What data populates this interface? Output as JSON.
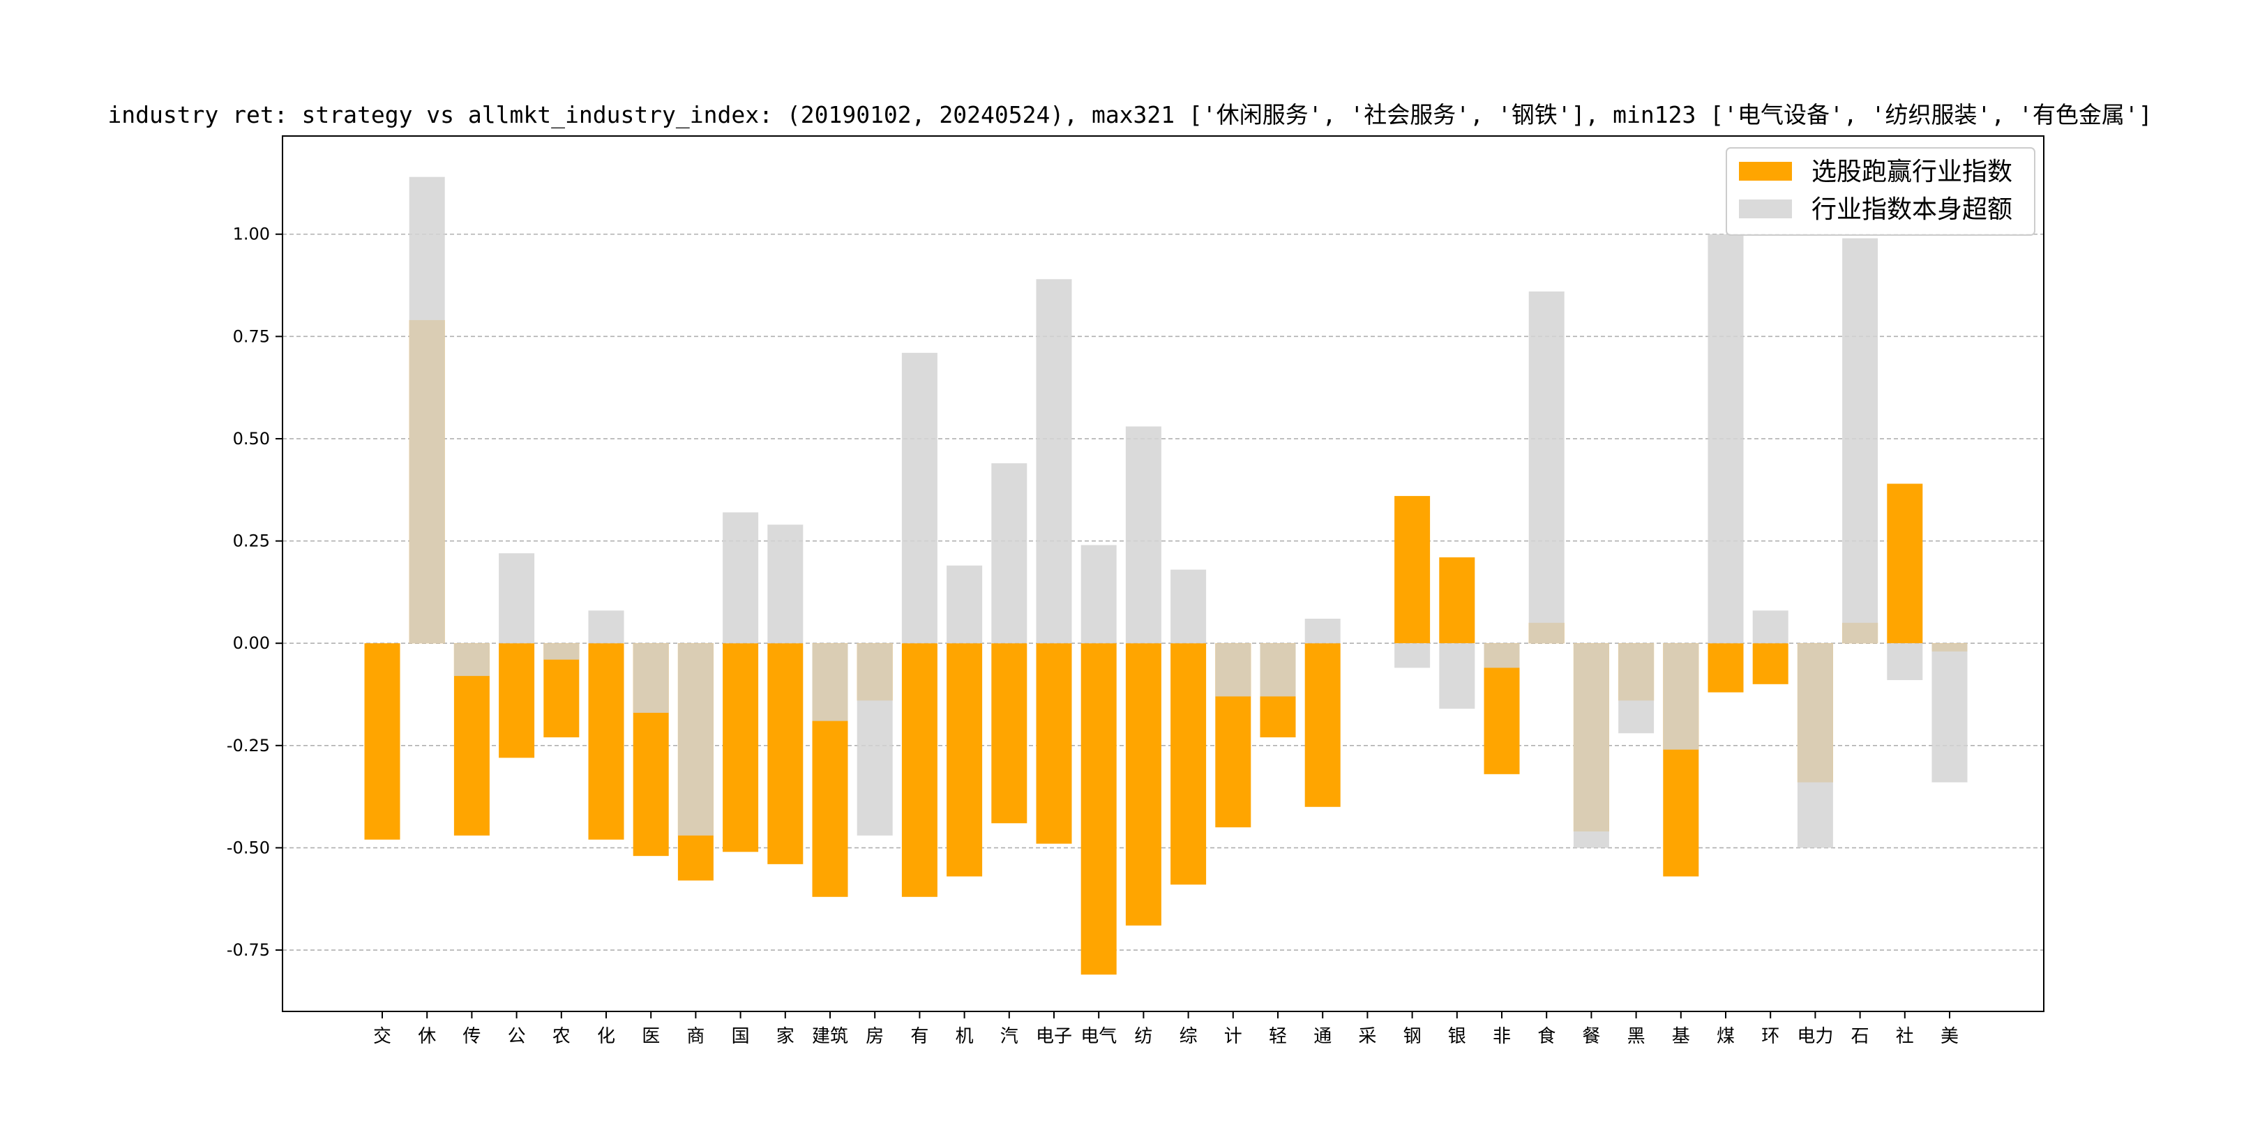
{
  "chart_data": {
    "type": "bar",
    "title": "industry ret: strategy vs allmkt_industry_index: (20190102, 20240524), max321 ['休闲服务', '社会服务', '钢铁'], min123 ['电气设备', '纺织服装', '有色金属']",
    "xlabel": "",
    "ylabel": "",
    "ylim": [
      -0.9,
      1.24
    ],
    "yticks": [
      -0.75,
      -0.5,
      -0.25,
      0.0,
      0.25,
      0.5,
      0.75,
      1.0
    ],
    "grid": "y-dashed",
    "legend_position": "top-right",
    "categories": [
      "交",
      "休",
      "传",
      "公",
      "农",
      "化",
      "医",
      "商",
      "国",
      "家",
      "建筑",
      "房",
      "有",
      "机",
      "汽",
      "电子",
      "电气",
      "纺",
      "综",
      "计",
      "轻",
      "通",
      "采",
      "钢",
      "银",
      "非",
      "食",
      "餐",
      "黑",
      "基",
      "煤",
      "环",
      "电力",
      "石",
      "社",
      "美"
    ],
    "series": [
      {
        "name": "选股跑赢行业指数",
        "color": "#ffa500",
        "values": [
          -0.48,
          0.79,
          -0.47,
          -0.28,
          -0.23,
          -0.48,
          -0.52,
          -0.58,
          -0.51,
          -0.54,
          -0.62,
          -0.14,
          -0.62,
          -0.57,
          -0.44,
          -0.49,
          -0.81,
          -0.69,
          -0.59,
          -0.45,
          -0.23,
          -0.4,
          0.0,
          0.36,
          0.21,
          -0.32,
          0.05,
          -0.46,
          -0.14,
          -0.57,
          -0.12,
          -0.1,
          -0.34,
          0.05,
          0.39,
          -0.02
        ]
      },
      {
        "name": "行业指数本身超额",
        "color": "#d3d3d3",
        "values": [
          0.0,
          1.14,
          -0.08,
          0.22,
          -0.04,
          0.08,
          -0.17,
          -0.47,
          0.32,
          0.29,
          -0.19,
          -0.47,
          0.71,
          0.19,
          0.44,
          0.89,
          0.24,
          0.53,
          0.18,
          -0.13,
          -0.13,
          0.06,
          0.0,
          -0.06,
          -0.16,
          -0.06,
          0.86,
          -0.5,
          -0.22,
          -0.26,
          1.0,
          0.08,
          -0.5,
          0.99,
          -0.09,
          -0.34
        ]
      }
    ]
  }
}
